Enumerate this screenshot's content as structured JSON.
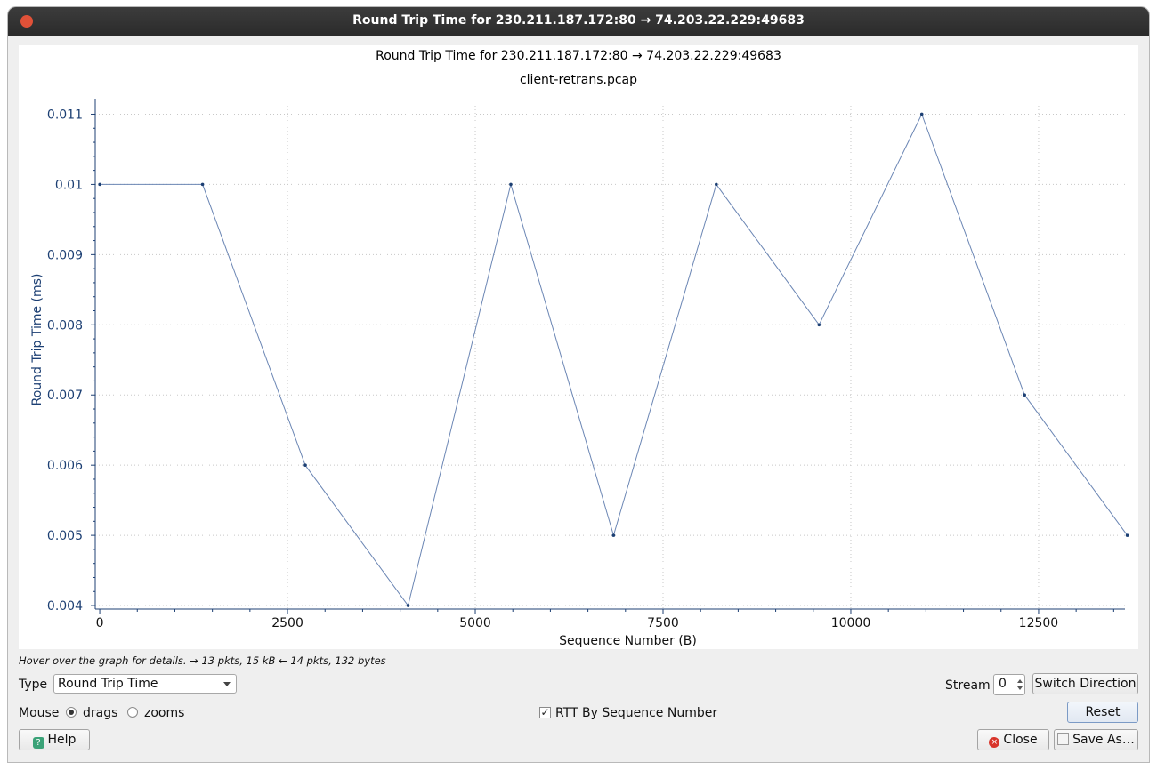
{
  "window": {
    "title": "Round Trip Time for 230.211.187.172:80 → 74.203.22.229:49683"
  },
  "plot": {
    "title": "Round Trip Time for 230.211.187.172:80 → 74.203.22.229:49683",
    "subtitle": "client-retrans.pcap"
  },
  "chart_data": {
    "type": "line",
    "xlabel": "Sequence Number (B)",
    "ylabel": "Round Trip Time (ms)",
    "xlim": [
      -60,
      13650
    ],
    "ylim": [
      0.00395,
      0.01112
    ],
    "x_ticks": [
      0,
      2500,
      5000,
      7500,
      10000,
      12500
    ],
    "x_tick_labels": [
      "0",
      "2500",
      "5000",
      "7500",
      "10000",
      "12500"
    ],
    "y_ticks": [
      0.004,
      0.005,
      0.006,
      0.007,
      0.008,
      0.009,
      0.01,
      0.011
    ],
    "y_tick_labels": [
      "0.004",
      "0.005",
      "0.006",
      "0.007",
      "0.008",
      "0.009",
      "0.01",
      "0.011"
    ],
    "grid": true,
    "series": [
      {
        "color": "#6b86b4",
        "x": [
          1,
          1369,
          2737,
          4105,
          5473,
          6841,
          8209,
          9577,
          10945,
          12313,
          13681
        ],
        "y": [
          0.01,
          0.01,
          0.006,
          0.004,
          0.01,
          0.005,
          0.01,
          0.008,
          0.011,
          0.007,
          0.005
        ]
      }
    ]
  },
  "hint": "Hover over the graph for details. → 13 pkts, 15 kB ← 14 pkts, 132 bytes",
  "controls": {
    "type_label": "Type",
    "type_value": "Round Trip Time",
    "stream_label": "Stream",
    "stream_value": "0",
    "switch_direction": "Switch Direction",
    "mouse_label": "Mouse",
    "drags_label": "drags",
    "zooms_label": "zooms",
    "rtt_by_seq_label": "RTT By Sequence Number",
    "reset": "Reset",
    "help": "Help",
    "close": "Close",
    "save_as": "Save As…"
  },
  "colors": {
    "axis": "#1c3f73",
    "line": "#6b86b4",
    "grid": "#c8c8c8"
  }
}
